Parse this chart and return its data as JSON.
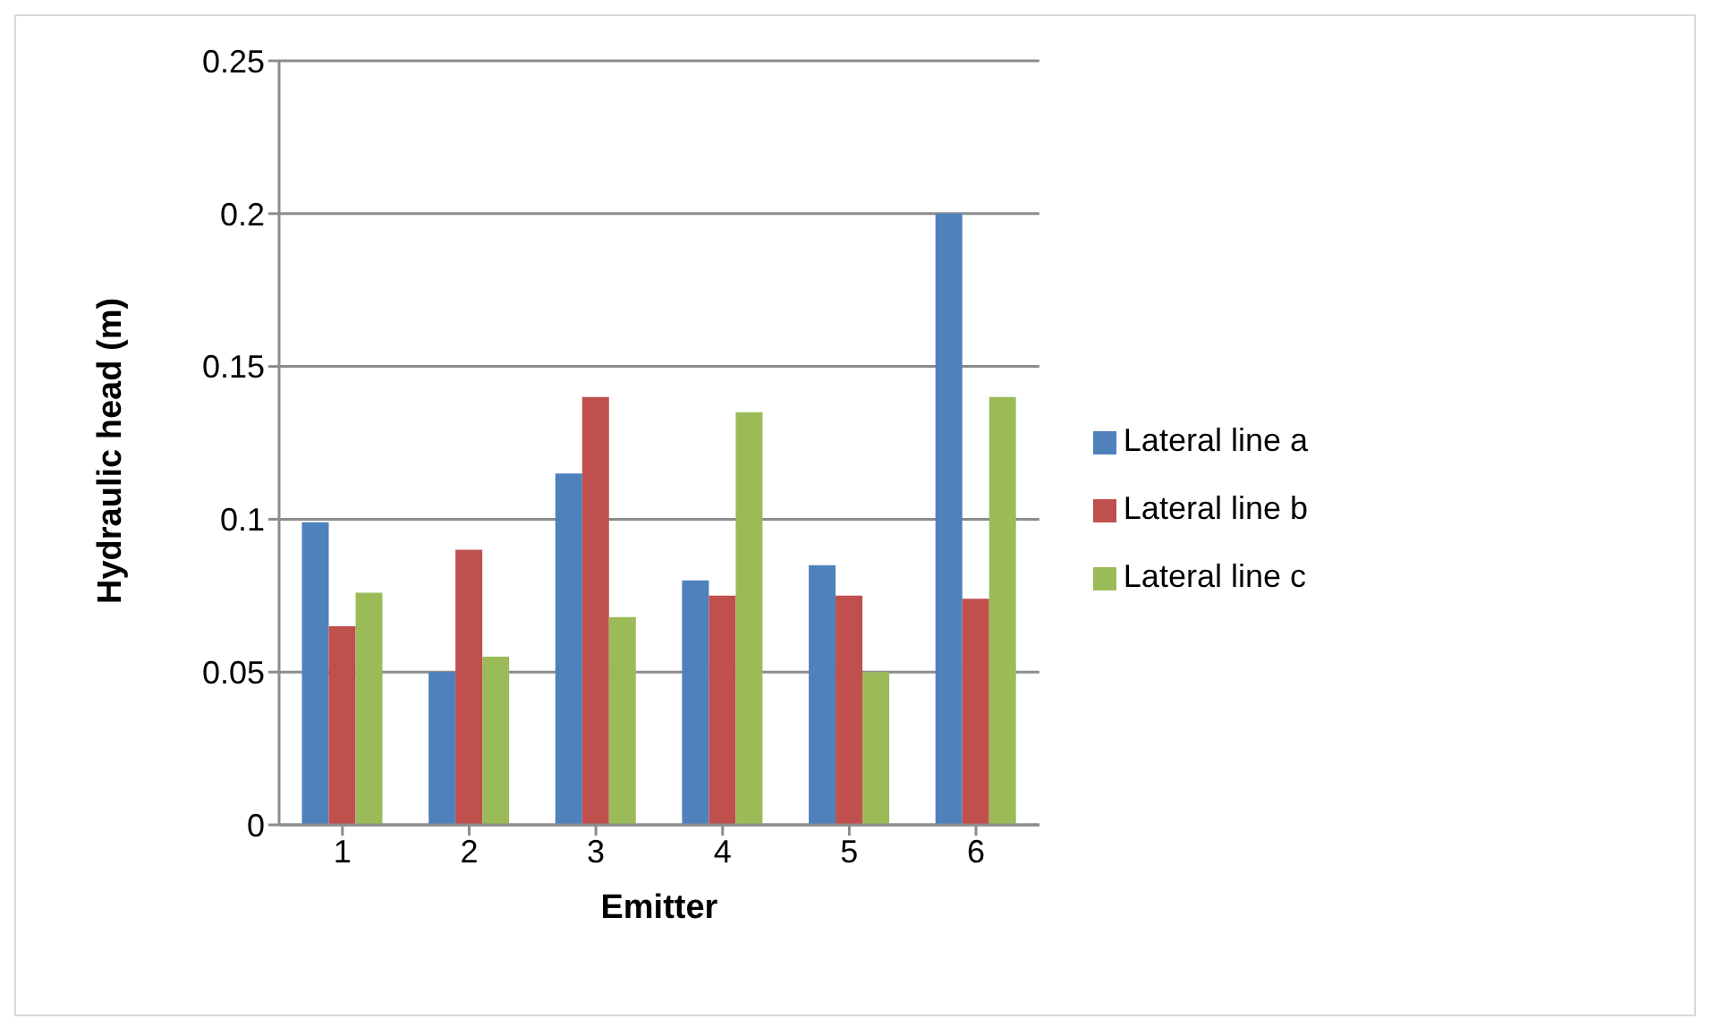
{
  "chart_data": {
    "type": "bar",
    "xlabel": "Emitter",
    "ylabel": "Hydraulic head (m)",
    "categories": [
      "1",
      "2",
      "3",
      "4",
      "5",
      "6"
    ],
    "series": [
      {
        "name": "Lateral line a",
        "color": "#4f81bd",
        "values": [
          0.099,
          0.05,
          0.115,
          0.08,
          0.085,
          0.2
        ]
      },
      {
        "name": "Lateral line b",
        "color": "#c0504d",
        "values": [
          0.065,
          0.09,
          0.14,
          0.075,
          0.075,
          0.074
        ]
      },
      {
        "name": "Lateral line c",
        "color": "#9bbb59",
        "values": [
          0.076,
          0.055,
          0.068,
          0.135,
          0.05,
          0.14
        ]
      }
    ],
    "ylim": [
      0,
      0.25
    ],
    "yticks": [
      0,
      0.05,
      0.1,
      0.15,
      0.2,
      0.25
    ],
    "grid": "y",
    "legend": "right"
  }
}
